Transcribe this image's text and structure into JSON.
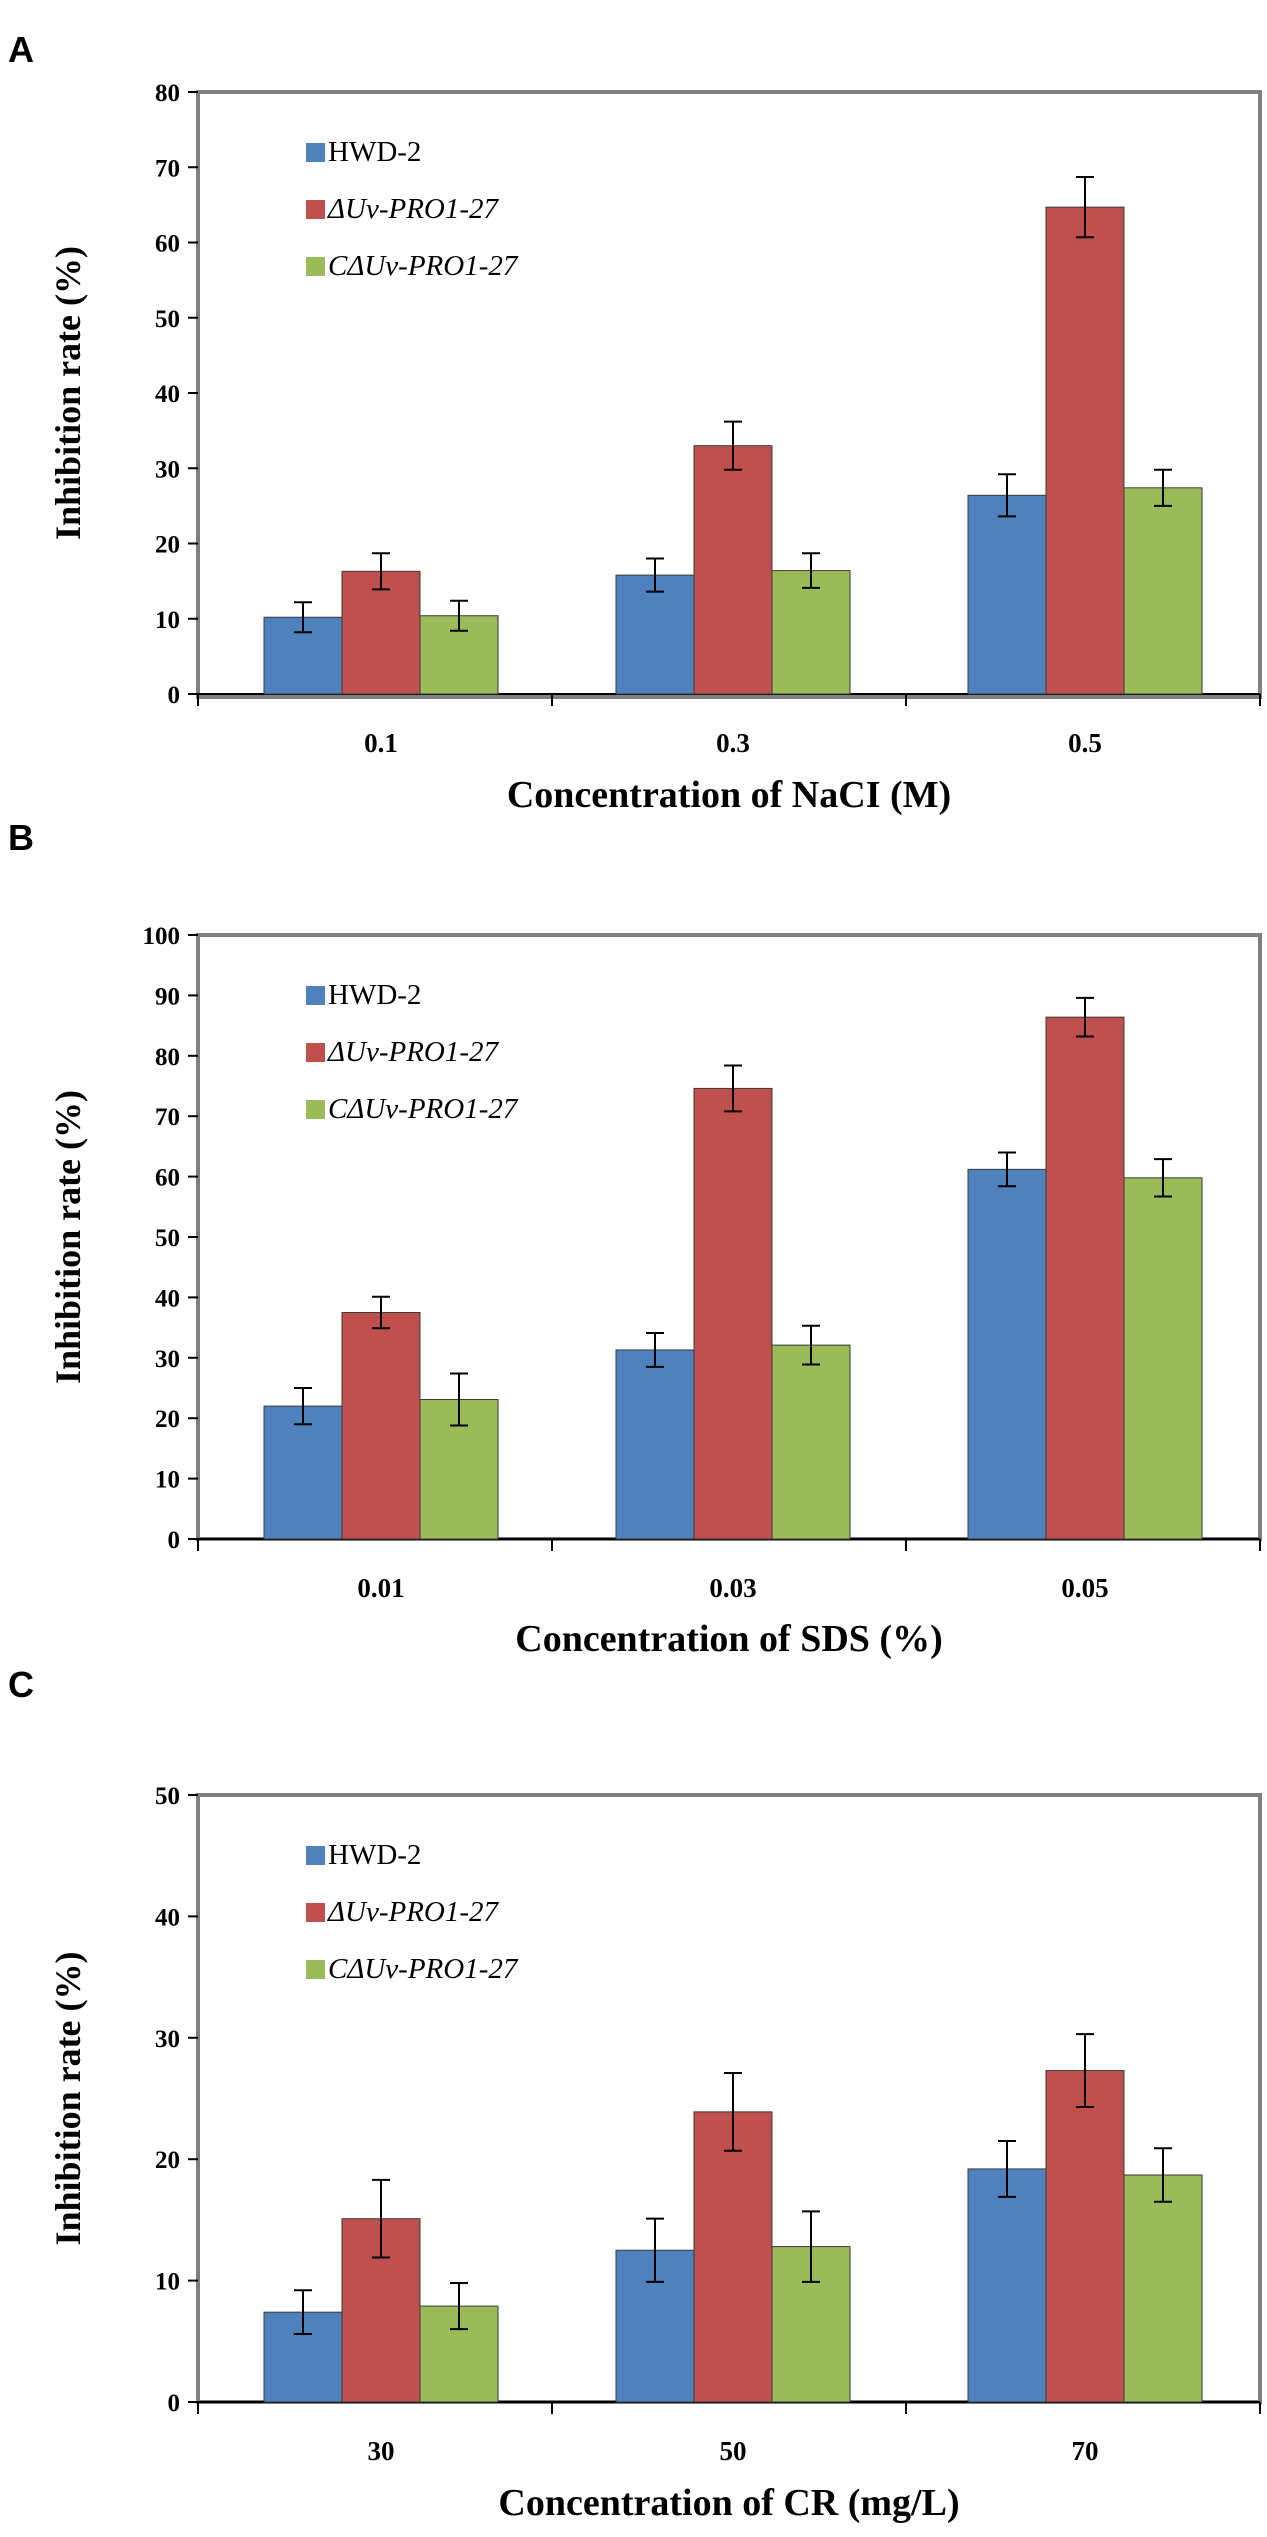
{
  "colors": {
    "HWD-2": "#4f81bd",
    "ΔUv-PRO1-27": "#c0504d",
    "CΔUv-PRO1-27": "#9bbb59",
    "bar_stroke": "#3a3a3a",
    "frame": "#7f7f7f"
  },
  "chart_data": [
    {
      "panel": "A",
      "type": "bar",
      "ylabel": "Inhibition rate (%)",
      "xlabel": "Concentration of NaCI (M)",
      "ylim": [
        0,
        80
      ],
      "yticks": [
        "0",
        "10",
        "20",
        "30",
        "40",
        "50",
        "60",
        "70",
        "80"
      ],
      "categories": [
        "0.1",
        "0.3",
        "0.5"
      ],
      "legend": [
        "HWD-2",
        "ΔUv-PRO1-27",
        "CΔUv-PRO1-27"
      ],
      "legend_position": "top-left",
      "series": [
        {
          "name": "HWD-2",
          "italic": false,
          "values": [
            10.2,
            15.8,
            26.4
          ],
          "errors": [
            2.0,
            2.2,
            2.8
          ]
        },
        {
          "name": "ΔUv-PRO1-27",
          "italic": true,
          "values": [
            16.3,
            33.0,
            64.7
          ],
          "errors": [
            2.4,
            3.2,
            4.0
          ]
        },
        {
          "name": "CΔUv-PRO1-27",
          "italic": true,
          "values": [
            10.4,
            16.4,
            27.4
          ],
          "errors": [
            2.0,
            2.3,
            2.4
          ]
        }
      ]
    },
    {
      "panel": "B",
      "type": "bar",
      "ylabel": "Inhibition rate (%)",
      "xlabel": "Concentration of SDS (%)",
      "ylim": [
        0,
        100
      ],
      "yticks": [
        "0",
        "10",
        "20",
        "30",
        "40",
        "50",
        "60",
        "70",
        "80",
        "90",
        "100"
      ],
      "categories": [
        "0.01",
        "0.03",
        "0.05"
      ],
      "legend": [
        "HWD-2",
        "ΔUv-PRO1-27",
        "CΔUv-PRO1-27"
      ],
      "legend_position": "top-left",
      "series": [
        {
          "name": "HWD-2",
          "italic": false,
          "values": [
            22.0,
            31.3,
            61.2
          ],
          "errors": [
            3.0,
            2.8,
            2.8
          ]
        },
        {
          "name": "ΔUv-PRO1-27",
          "italic": true,
          "values": [
            37.5,
            74.6,
            86.4
          ],
          "errors": [
            2.6,
            3.8,
            3.2
          ]
        },
        {
          "name": "CΔUv-PRO1-27",
          "italic": true,
          "values": [
            23.1,
            32.1,
            59.8
          ],
          "errors": [
            4.3,
            3.2,
            3.1
          ]
        }
      ]
    },
    {
      "panel": "C",
      "type": "bar",
      "ylabel": "Inhibition rate (%)",
      "xlabel": "Concentration of CR (mg/L)",
      "ylim": [
        0,
        50
      ],
      "yticks": [
        "0",
        "10",
        "20",
        "30",
        "40",
        "50"
      ],
      "categories": [
        "30",
        "50",
        "70"
      ],
      "legend": [
        "HWD-2",
        "ΔUv-PRO1-27",
        "CΔUv-PRO1-27"
      ],
      "legend_position": "top-left",
      "series": [
        {
          "name": "HWD-2",
          "italic": false,
          "values": [
            7.4,
            12.5,
            19.2
          ],
          "errors": [
            1.8,
            2.6,
            2.3
          ]
        },
        {
          "name": "ΔUv-PRO1-27",
          "italic": true,
          "values": [
            15.1,
            23.9,
            27.3
          ],
          "errors": [
            3.2,
            3.2,
            3.0
          ]
        },
        {
          "name": "CΔUv-PRO1-27",
          "italic": true,
          "values": [
            7.9,
            12.8,
            18.7
          ],
          "errors": [
            1.9,
            2.9,
            2.2
          ]
        }
      ]
    }
  ]
}
